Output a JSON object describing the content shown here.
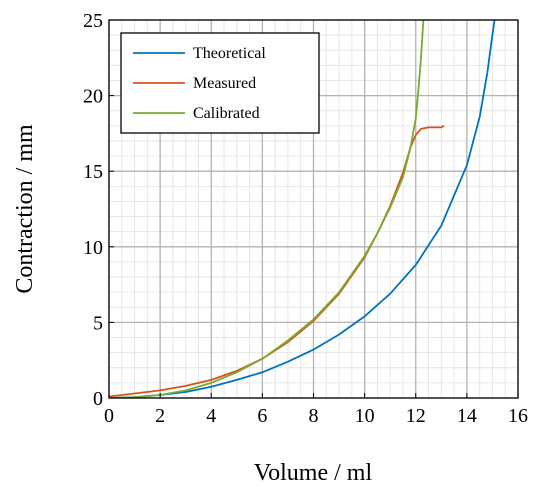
{
  "chart_data": {
    "type": "line",
    "title": "",
    "xlabel": "Volume / ml",
    "ylabel": "Contraction / mm",
    "xlim": [
      0,
      16
    ],
    "ylim": [
      0,
      25
    ],
    "x_ticks": [
      0,
      2,
      4,
      6,
      8,
      10,
      12,
      14,
      16
    ],
    "y_ticks": [
      0,
      5,
      10,
      15,
      20,
      25
    ],
    "x_minor_step": 0.5,
    "y_minor_step": 1,
    "grid": true,
    "legend_position": "top-left",
    "series": [
      {
        "name": "Theoretical",
        "color": "#0072bd",
        "x": [
          0,
          1,
          2,
          3,
          4,
          5,
          6,
          7,
          8,
          9,
          10,
          11,
          12,
          13,
          14,
          14.5,
          14.8,
          15.0,
          15.1
        ],
        "y": [
          0,
          0.05,
          0.2,
          0.4,
          0.75,
          1.2,
          1.7,
          2.4,
          3.2,
          4.2,
          5.4,
          6.9,
          8.8,
          11.4,
          15.4,
          18.6,
          21.5,
          24.0,
          25.2
        ]
      },
      {
        "name": "Measured",
        "color": "#d95319",
        "x": [
          0,
          0.5,
          1,
          2,
          3,
          4,
          5,
          6,
          7,
          8,
          9,
          10,
          10.5,
          11,
          11.5,
          11.8,
          12.0,
          12.2,
          12.5,
          12.8,
          13.0,
          13.1
        ],
        "y": [
          0.1,
          0.2,
          0.3,
          0.5,
          0.8,
          1.2,
          1.8,
          2.6,
          3.7,
          5.1,
          6.9,
          9.3,
          10.9,
          12.7,
          14.9,
          16.6,
          17.4,
          17.8,
          17.9,
          17.9,
          17.9,
          18.0
        ]
      },
      {
        "name": "Calibrated",
        "color": "#77ac30",
        "x": [
          0,
          1,
          2,
          3,
          4,
          5,
          6,
          7,
          8,
          9,
          10,
          10.5,
          11,
          11.5,
          11.8,
          12.0,
          12.1,
          12.2,
          12.3
        ],
        "y": [
          0,
          0.05,
          0.2,
          0.5,
          1.0,
          1.7,
          2.6,
          3.8,
          5.2,
          7.0,
          9.4,
          10.9,
          12.6,
          14.6,
          16.6,
          18.5,
          20.3,
          22.4,
          25.0
        ]
      }
    ]
  }
}
